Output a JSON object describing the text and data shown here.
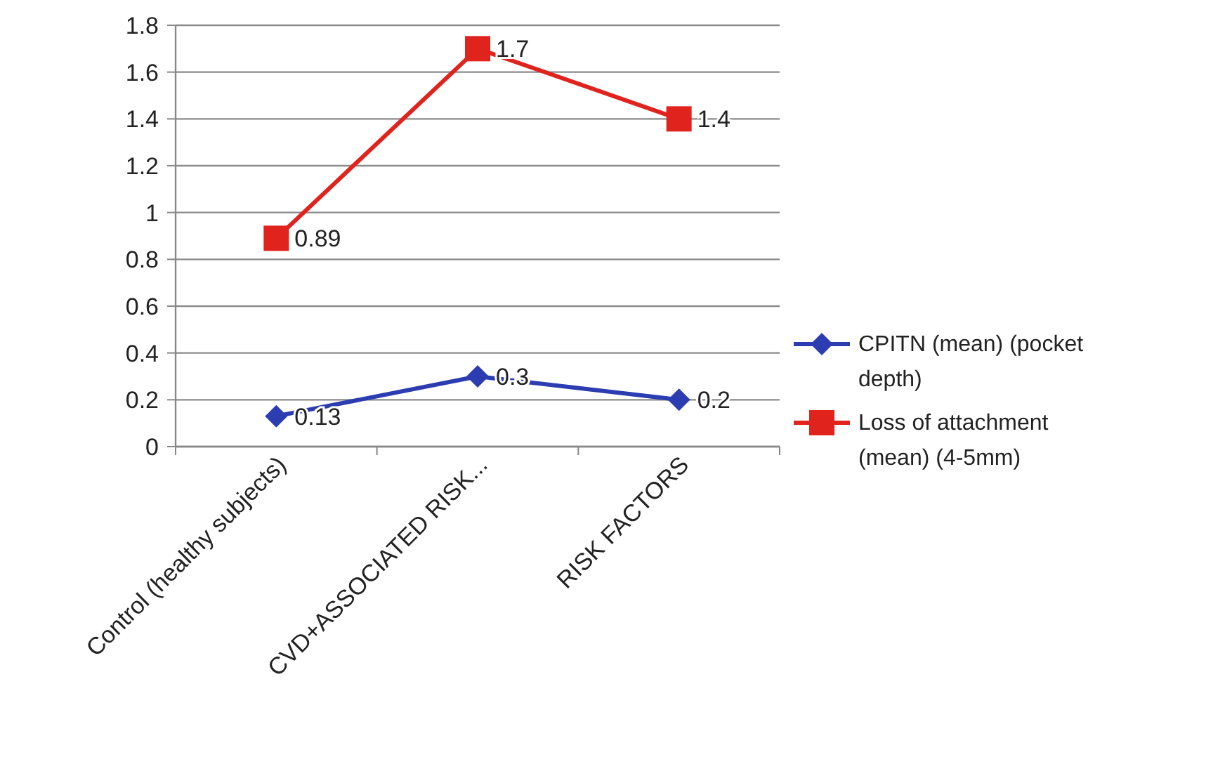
{
  "chart_data": {
    "type": "line",
    "categories": [
      "Control (healthy subjects)",
      "CVD+ASSOCIATED RISK...",
      "RISK FACTORS"
    ],
    "series": [
      {
        "name": "CPITN (mean)  (pocket depth)",
        "color": "#2b3db0",
        "marker": "diamond",
        "values": [
          0.13,
          0.3,
          0.2
        ]
      },
      {
        "name": "Loss of attachment (mean) (4-5mm)",
        "color": "#e0231c",
        "marker": "square",
        "values": [
          0.89,
          1.7,
          1.4
        ]
      }
    ],
    "ylim": [
      0,
      1.8
    ],
    "yticks": [
      0,
      0.2,
      0.4,
      0.6,
      0.8,
      1,
      1.2,
      1.4,
      1.6,
      1.8
    ],
    "grid": "y",
    "legend": "right",
    "data_labels": true,
    "line_style": "solid"
  }
}
